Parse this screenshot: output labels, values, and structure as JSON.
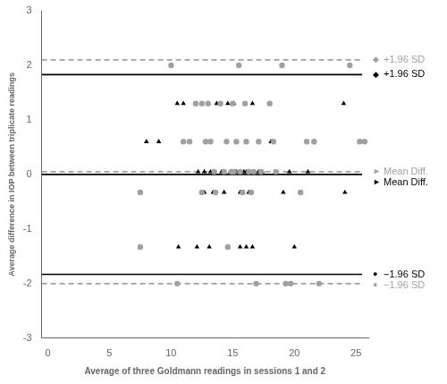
{
  "chart_data": {
    "type": "scatter",
    "xlabel": "Average of three Goldmann readings in sessions 1 and 2",
    "ylabel": "Average difference in IOP between triplicate readings",
    "xlim": [
      -0.5,
      26.0
    ],
    "ylim": [
      -3,
      3
    ],
    "xticks": [
      0,
      5,
      10,
      15,
      20,
      25
    ],
    "yticks": [
      -3,
      -2,
      -1,
      0,
      1,
      2,
      3
    ],
    "grid": false,
    "series": [
      {
        "type": "line",
        "color": "#000000",
        "line_style": "solid",
        "x": [
          -0.5,
          25.5
        ],
        "values": [
          1.83,
          1.83
        ]
      },
      {
        "type": "line",
        "color": "#000000",
        "line_style": "solid",
        "x": [
          -0.5,
          25.5
        ],
        "values": [
          0.0,
          0.0
        ]
      },
      {
        "type": "line",
        "color": "#000000",
        "line_style": "solid",
        "x": [
          -0.5,
          25.5
        ],
        "values": [
          -1.83,
          -1.83
        ]
      },
      {
        "type": "line",
        "color": "#a0a0a0",
        "line_style": "dashed",
        "x": [
          -0.5,
          25.5
        ],
        "values": [
          2.1,
          2.1
        ]
      },
      {
        "type": "line",
        "color": "#a0a0a0",
        "line_style": "dashed",
        "x": [
          -0.5,
          25.5
        ],
        "values": [
          0.05,
          0.05
        ]
      },
      {
        "type": "line",
        "color": "#a0a0a0",
        "line_style": "dashed",
        "x": [
          -0.5,
          25.5
        ],
        "values": [
          -2.0,
          -2.0
        ]
      },
      {
        "type": "scatter",
        "color": "#a0a0a0",
        "marker": "circle",
        "x": [
          7.5,
          7.5,
          10.0,
          10.5,
          11.0,
          11.5,
          12.0,
          12.5,
          12.5,
          12.8,
          13.0,
          13.2,
          13.5,
          13.6,
          14.0,
          14.3,
          14.5,
          14.6,
          14.9,
          15.0,
          15.1,
          15.3,
          15.5,
          15.6,
          15.8,
          16.0,
          16.1,
          16.3,
          16.5,
          16.7,
          16.9,
          17.1,
          17.3,
          18.0,
          18.3,
          18.5,
          19.0,
          19.3,
          19.7,
          20.5,
          21.0,
          21.6,
          22.0,
          24.5,
          25.3,
          25.7
        ],
        "values": [
          -0.33,
          -1.33,
          2.0,
          -2.0,
          0.6,
          0.6,
          1.3,
          1.3,
          -0.33,
          0.6,
          1.3,
          0.6,
          0.05,
          -0.33,
          1.3,
          0.05,
          0.6,
          -1.33,
          0.05,
          1.3,
          0.05,
          0.6,
          2.0,
          0.05,
          -0.33,
          1.3,
          0.6,
          0.05,
          -0.33,
          0.05,
          -2.0,
          0.6,
          0.05,
          1.3,
          0.6,
          0.05,
          2.0,
          -2.0,
          -2.0,
          -0.33,
          0.6,
          0.6,
          -2.0,
          2.0,
          0.6,
          0.6
        ]
      },
      {
        "type": "scatter",
        "color": "#000000",
        "marker": "triangle",
        "x": [
          8.0,
          9.0,
          10.5,
          11.0,
          12.2,
          12.7,
          12.7,
          13.2,
          13.4,
          13.7,
          14.1,
          14.3,
          14.6,
          14.8,
          15.1,
          15.3,
          15.6,
          15.9,
          16.1,
          16.3,
          16.6,
          17.1,
          17.4,
          18.1,
          19.1,
          19.6,
          20.0,
          21.1,
          24.0,
          24.1,
          10.6,
          12.1,
          13.1,
          15.6,
          16.1,
          16.6
        ],
        "values": [
          0.6,
          0.6,
          1.3,
          1.3,
          0.05,
          0.05,
          -0.33,
          0.05,
          -0.33,
          1.3,
          0.05,
          -0.33,
          1.3,
          0.05,
          1.3,
          0.05,
          -0.33,
          0.05,
          0.05,
          -0.33,
          1.3,
          0.05,
          0.05,
          0.6,
          -0.33,
          0.05,
          -1.33,
          0.05,
          1.3,
          -0.33,
          -1.33,
          -1.33,
          -1.33,
          -1.33,
          -1.33,
          -1.33
        ]
      }
    ],
    "annotations": [
      {
        "symbol": "◆",
        "text": "+1.96 SD",
        "y": 2.1,
        "color": "#a0a0a0"
      },
      {
        "symbol": "◆",
        "text": "+1.96 SD",
        "y": 1.83,
        "color": "#000000"
      },
      {
        "symbol": "►",
        "text": "Mean Diff.",
        "y": 0.05,
        "color": "#a0a0a0"
      },
      {
        "symbol": "►",
        "text": "Mean Diff.",
        "y": 0.0,
        "color": "#000000"
      },
      {
        "symbol": "●",
        "text": "−1.96 SD",
        "y": -1.83,
        "color": "#000000"
      },
      {
        "symbol": "●",
        "text": "−1.96 SD",
        "y": -2.0,
        "color": "#a0a0a0"
      }
    ]
  }
}
